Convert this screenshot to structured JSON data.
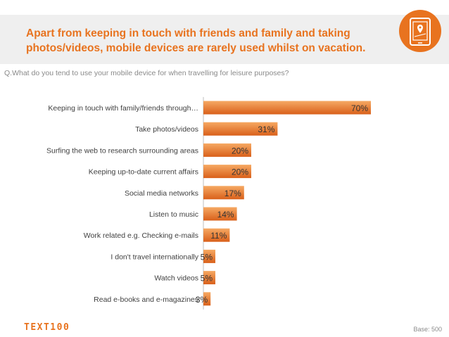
{
  "header": {
    "title_line1": "Apart from keeping in touch with friends and family and taking",
    "title_line2": "photos/videos, mobile devices are rarely used whilst on vacation."
  },
  "question": "Q.What do you tend to use your mobile device for when travelling for leisure purposes?",
  "footer": {
    "base": "Base: 500",
    "logo_text": "TEXT100"
  },
  "colors": {
    "accent": "#e8731f",
    "bar_top": "#f4a15a",
    "bar_bottom": "#d8621a"
  },
  "chart_data": {
    "type": "bar",
    "orientation": "horizontal",
    "title": "Q.What do you tend to use your mobile device for when travelling for leisure purposes?",
    "unit": "%",
    "categories": [
      "Keeping in touch with family/friends through…",
      "Take photos/videos",
      "Surfing the web to research surrounding areas",
      "Keeping up-to-date current affairs",
      "Social media networks",
      "Listen to music",
      "Work related e.g. Checking e-mails",
      "I don't travel internationally",
      "Watch videos",
      "Read e-books and e-magazines"
    ],
    "values": [
      70,
      31,
      20,
      20,
      17,
      14,
      11,
      5,
      5,
      3
    ],
    "labels": [
      "70%",
      "31%",
      "20%",
      "20%",
      "17%",
      "14%",
      "11%",
      "5%",
      "5%",
      "3%"
    ],
    "xlim": [
      0,
      100
    ],
    "grid": false,
    "legend": "none"
  }
}
